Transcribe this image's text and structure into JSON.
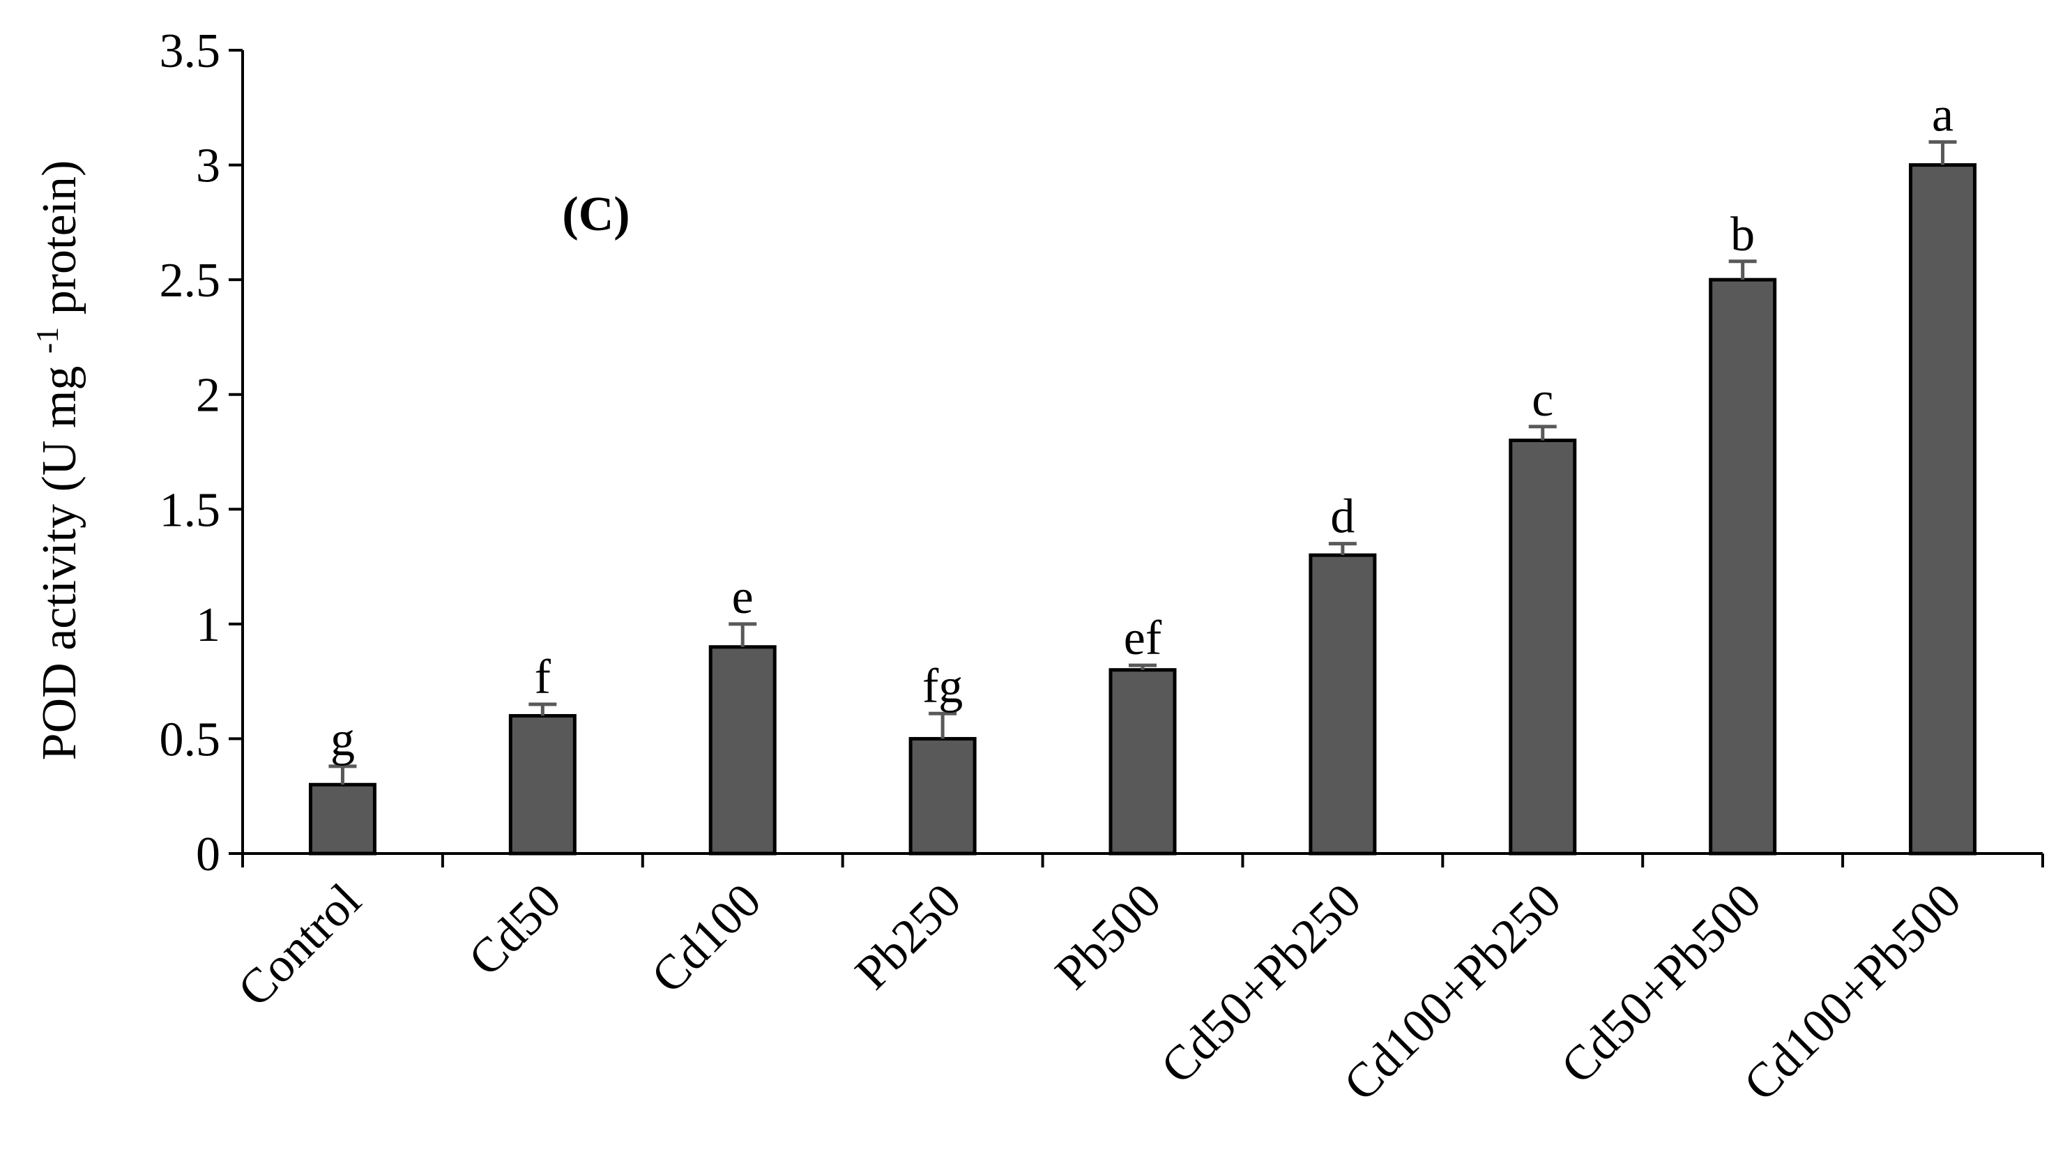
{
  "chart_data": {
    "type": "bar",
    "panel_label": "(C)",
    "title": "",
    "xlabel": "",
    "ylabel_main": "POD activity (U mg ",
    "ylabel_sup": "-1",
    "ylabel_tail": " protein)",
    "ylim": [
      0,
      3.5
    ],
    "yticks": [
      "0",
      "0.5",
      "1",
      "1.5",
      "2",
      "2.5",
      "3",
      "3.5"
    ],
    "grid": false,
    "legend": "none",
    "categories": [
      "Control",
      "Cd50",
      "Cd100",
      "Pb250",
      "Pb500",
      "Cd50+Pb250",
      "Cd100+Pb250",
      "Cd50+Pb500",
      "Cd100+Pb500"
    ],
    "values": [
      0.3,
      0.6,
      0.9,
      0.5,
      0.8,
      1.3,
      1.8,
      2.5,
      3.0
    ],
    "errors": [
      0.08,
      0.05,
      0.1,
      0.11,
      0.02,
      0.05,
      0.06,
      0.08,
      0.1
    ],
    "significance": [
      "g",
      "f",
      "e",
      "fg",
      "ef",
      "d",
      "c",
      "b",
      "a"
    ],
    "colors": {
      "bar_fill": "#595959",
      "bar_stroke": "#000000",
      "error_bar": "#595959",
      "axis": "#000000"
    }
  }
}
